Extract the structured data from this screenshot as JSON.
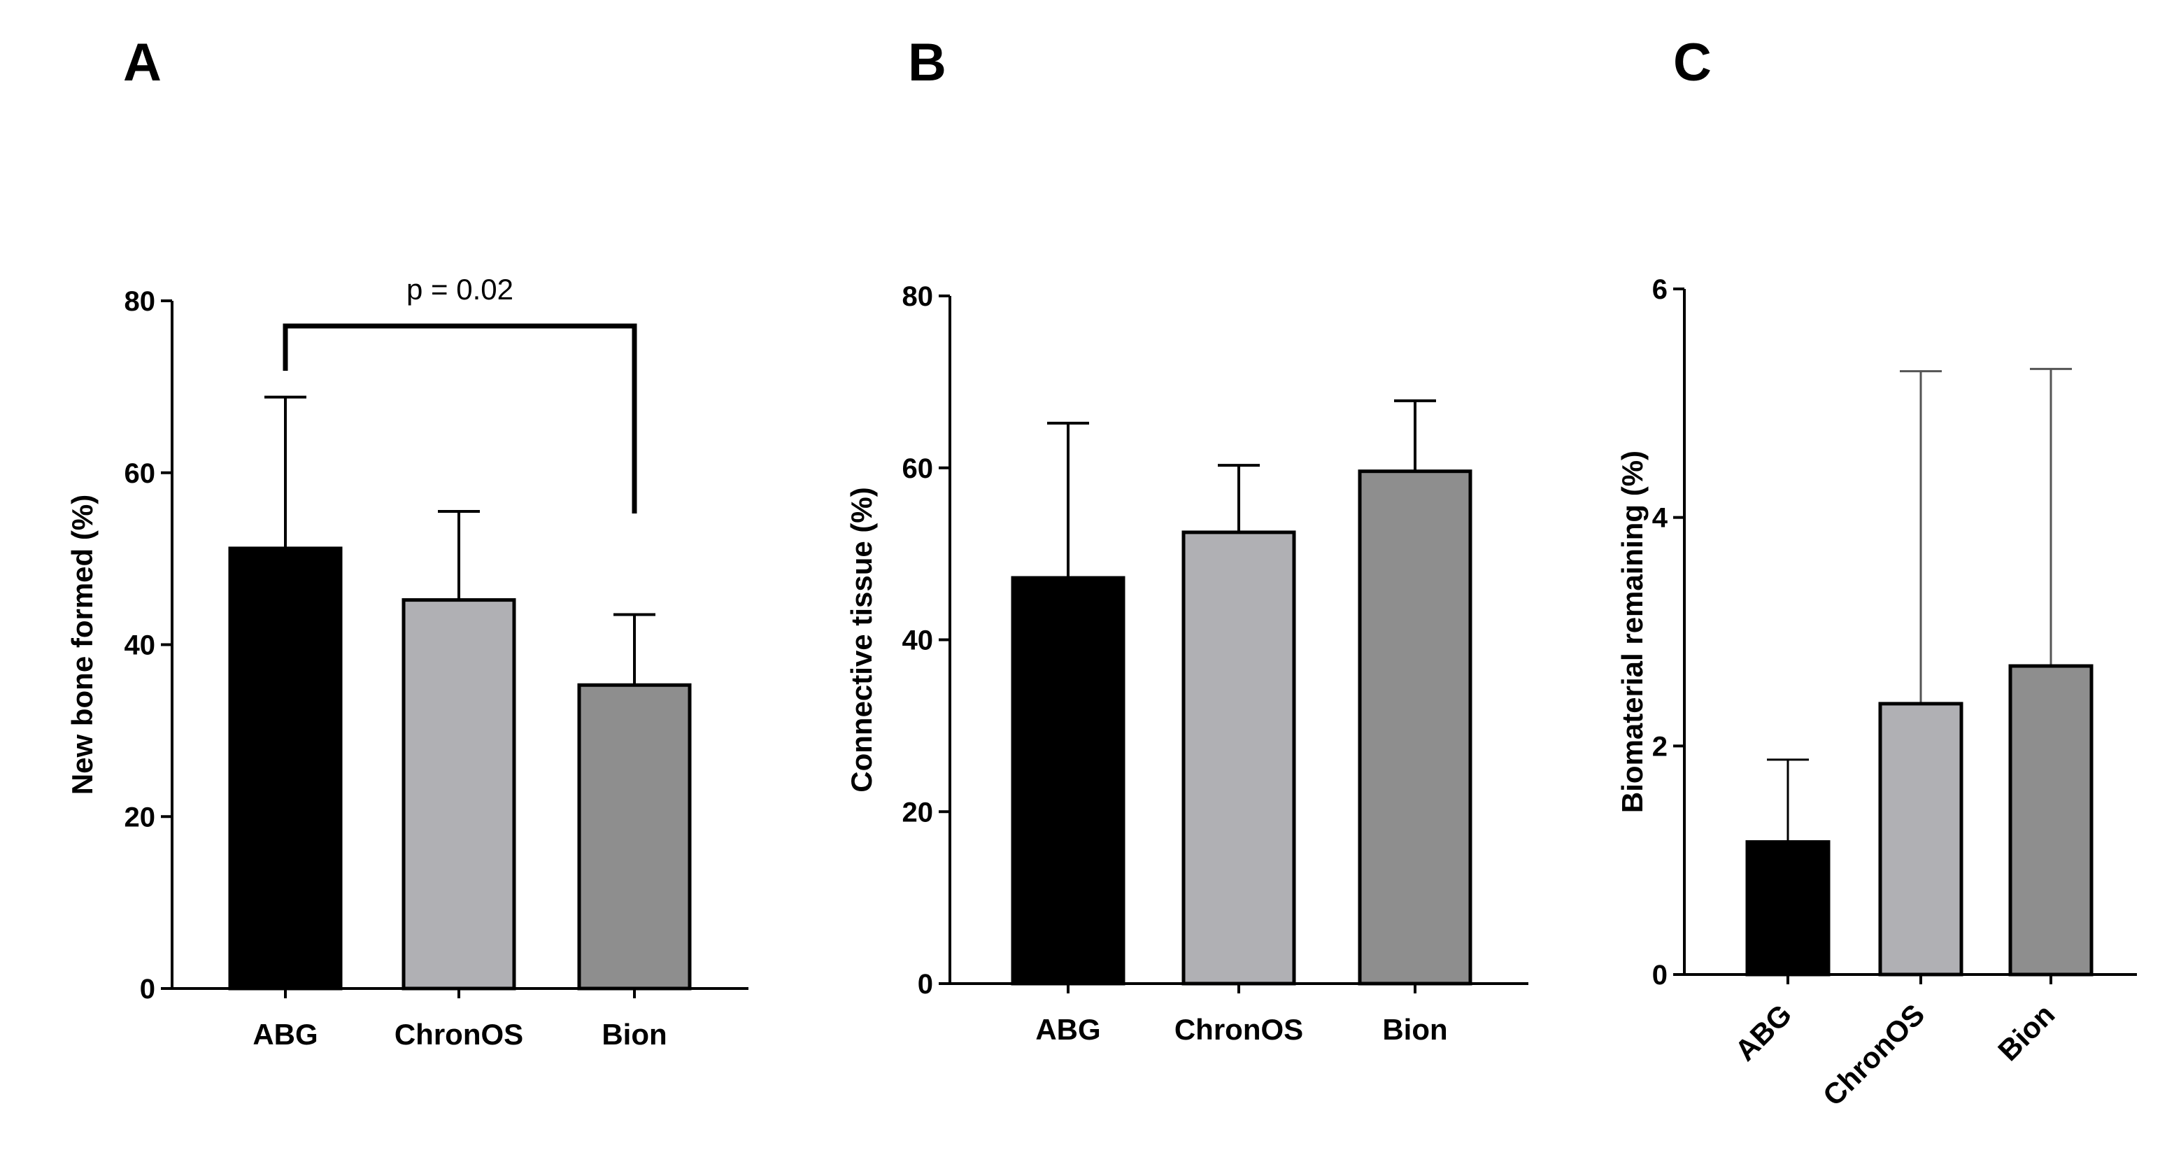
{
  "figure": {
    "colors": {
      "ABG": "#000000",
      "ChronOS": "#b0b0b4",
      "Bion": "#8e8e8e"
    }
  },
  "chart_data": [
    {
      "type": "bar",
      "panel": "A",
      "title": "",
      "ylabel": "New bone formed (%)",
      "xlabel": "",
      "ylim": [
        0,
        80
      ],
      "yticks": [
        0,
        20,
        40,
        60,
        80
      ],
      "categories": [
        "ABG",
        "ChronOS",
        "Bion"
      ],
      "values": [
        51.2,
        45.2,
        35.3
      ],
      "error_upper": [
        68.8,
        55.5,
        43.5
      ],
      "annotations": [
        {
          "text": "p = 0.02",
          "between": [
            "ABG",
            "Bion"
          ]
        }
      ],
      "legend": "none"
    },
    {
      "type": "bar",
      "panel": "B",
      "title": "",
      "ylabel": "Connective tissue (%)",
      "xlabel": "",
      "ylim": [
        0,
        80
      ],
      "yticks": [
        0,
        20,
        40,
        60,
        80
      ],
      "categories": [
        "ABG",
        "ChronOS",
        "Bion"
      ],
      "values": [
        47.2,
        52.5,
        59.6
      ],
      "error_upper": [
        65.2,
        60.3,
        67.8
      ],
      "legend": "none"
    },
    {
      "type": "bar",
      "panel": "C",
      "title": "",
      "ylabel": "Biomaterial remaining (%)",
      "xlabel": "",
      "ylim": [
        0,
        6
      ],
      "yticks": [
        0,
        2,
        4,
        6
      ],
      "categories": [
        "ABG",
        "ChronOS",
        "Bion"
      ],
      "values": [
        1.16,
        2.37,
        2.7
      ],
      "error_upper": [
        1.88,
        5.28,
        5.3
      ],
      "rotated_labels": true,
      "legend": "none"
    }
  ]
}
